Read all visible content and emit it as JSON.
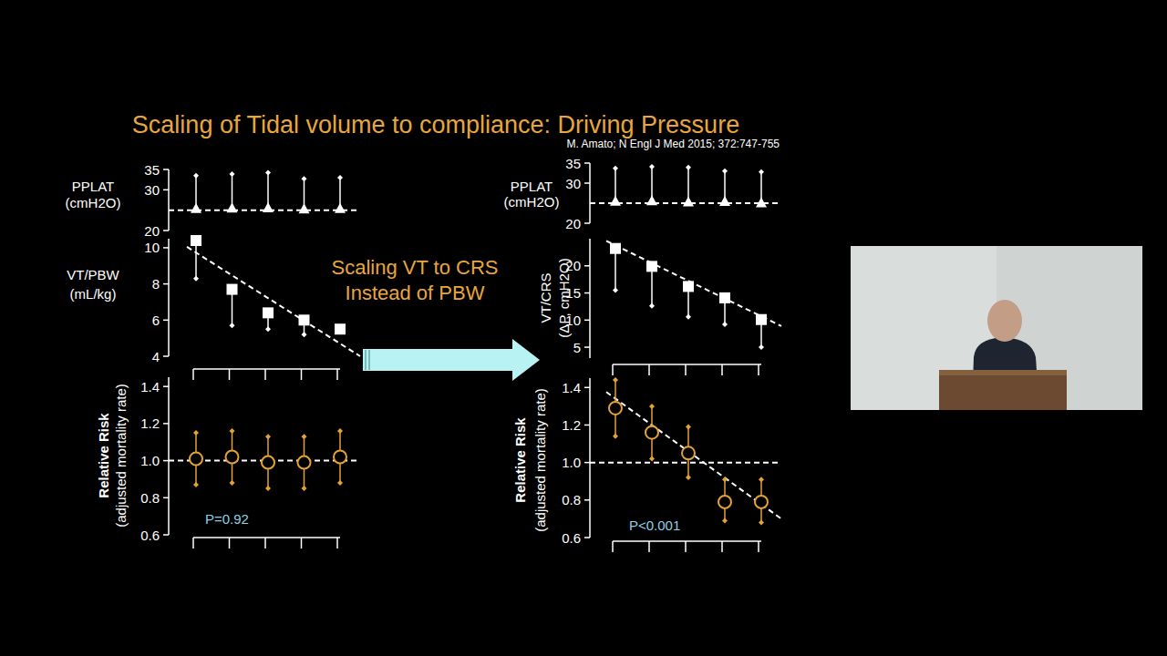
{
  "title": "Scaling of Tidal volume to compliance: Driving Pressure",
  "citation": "M. Amato; N Engl J Med 2015; 372:747-755",
  "annotation": [
    "Scaling VT to CRS",
    "Instead of PBW"
  ],
  "chart_data": [
    {
      "type": "scatter",
      "ylabel": [
        "PPLAT",
        "(cmH2O)"
      ],
      "categories": [
        null,
        null,
        null,
        null,
        null
      ],
      "values": [
        25.2,
        25.3,
        25.4,
        25.1,
        25.2
      ],
      "error_plus": [
        8.3,
        8.6,
        8.8,
        7.6,
        7.8
      ],
      "ylim": [
        20,
        35
      ],
      "yticks": [
        20,
        30,
        35
      ],
      "reference_line": 25,
      "marker": "triangle",
      "color": "#ffffff",
      "tick_labels": "y"
    },
    {
      "type": "scatter",
      "ylabel": [
        "VT/PBW",
        "(mL/kg)"
      ],
      "categories": [
        null,
        null,
        null,
        null,
        null
      ],
      "values": [
        10.4,
        7.7,
        6.4,
        6.0,
        5.5
      ],
      "error_minus": [
        2.1,
        2.0,
        0.9,
        0.8,
        null
      ],
      "ylim": [
        4,
        10.5
      ],
      "yticks": [
        4,
        6,
        8,
        10
      ],
      "trend": [
        10.05,
        4.0
      ],
      "marker": "square",
      "color": "#ffffff",
      "tick_labels": "y"
    },
    {
      "type": "scatter",
      "ylabel": [
        "Relative Risk",
        "(adjusted mortality rate)"
      ],
      "categories": [
        null,
        null,
        null,
        null,
        null
      ],
      "values": [
        1.01,
        1.02,
        0.99,
        0.99,
        1.02
      ],
      "error_plus": [
        0.14,
        0.14,
        0.14,
        0.14,
        0.14
      ],
      "error_minus": [
        0.14,
        0.14,
        0.14,
        0.14,
        0.14
      ],
      "ylim": [
        0.6,
        1.45
      ],
      "yticks": [
        0.6,
        0.8,
        {
          "value": 1,
          "label": "1.0"
        },
        1.2,
        1.4
      ],
      "reference_line": 1,
      "annotation": "P=0.92",
      "marker": "circle",
      "color": "#e3a234",
      "tick_labels": "y"
    },
    {
      "type": "scatter",
      "ylabel": [
        "PPLAT",
        "(cmH2O)"
      ],
      "categories": [
        null,
        null,
        null,
        null,
        null
      ],
      "values": [
        25.3,
        25.4,
        25.1,
        25.2,
        24.9
      ],
      "error_plus": [
        8.4,
        8.7,
        8.8,
        7.8,
        7.9
      ],
      "ylim": [
        20,
        35
      ],
      "yticks": [
        20,
        30,
        35
      ],
      "reference_line": 25,
      "marker": "triangle",
      "color": "#ffffff",
      "tick_labels": "y"
    },
    {
      "type": "scatter",
      "ylabel": [
        "VT/CRS",
        "(ΔP, cmH2O)"
      ],
      "categories": [
        null,
        null,
        null,
        null,
        null
      ],
      "values": [
        23.2,
        19.9,
        16.2,
        14.1,
        10.1
      ],
      "error_minus": [
        7.7,
        7.3,
        5.6,
        4.9,
        5.1
      ],
      "ylim": [
        3,
        25
      ],
      "yticks": [
        5,
        10,
        15,
        20
      ],
      "trend": [
        24.6,
        8.9
      ],
      "marker": "square",
      "color": "#ffffff",
      "tick_labels": "y"
    },
    {
      "type": "scatter",
      "ylabel": [
        "Relative Risk",
        "(adjusted mortality rate)"
      ],
      "categories": [
        null,
        null,
        null,
        null,
        null
      ],
      "values": [
        1.29,
        1.16,
        1.05,
        0.79,
        0.79
      ],
      "error_plus": [
        0.15,
        0.14,
        0.14,
        0.12,
        0.12
      ],
      "error_minus": [
        0.15,
        0.14,
        0.13,
        0.1,
        0.11
      ],
      "ylim": [
        0.6,
        1.45
      ],
      "yticks": [
        0.6,
        0.8,
        {
          "value": 1,
          "label": "1.0"
        },
        1.2,
        1.4
      ],
      "reference_line": 1,
      "trend": [
        1.376,
        0.7
      ],
      "annotation": "P<0.001",
      "marker": "circle",
      "color": "#e3a234",
      "tick_labels": "y"
    }
  ]
}
